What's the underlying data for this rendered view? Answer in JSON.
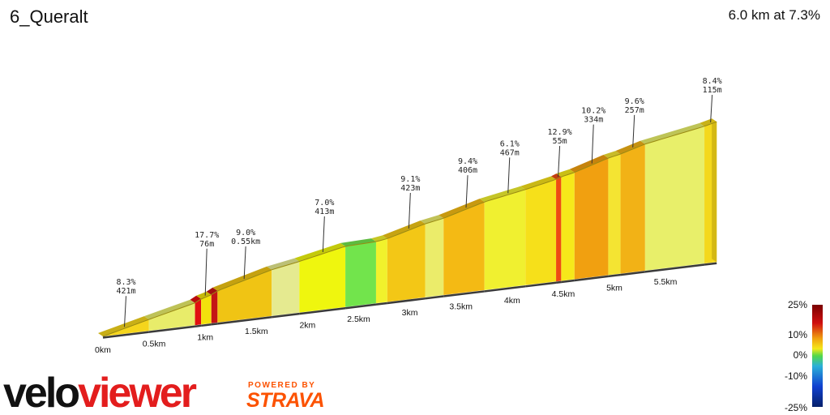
{
  "header": {
    "title": "6_Queralt",
    "summary": "6.0 km at 7.3%"
  },
  "chart_data": {
    "type": "area",
    "segments": [
      {
        "x0": 0,
        "x1": 0.45,
        "grade": 8.3,
        "color": "#f5d51c"
      },
      {
        "x0": 0.45,
        "x1": 0.9,
        "grade": 8.0,
        "color": "#e8ec6a"
      },
      {
        "x0": 0.9,
        "x1": 0.96,
        "grade": 17.7,
        "color": "#e01010"
      },
      {
        "x0": 0.96,
        "x1": 1.06,
        "grade": 9.5,
        "color": "#f2e20c"
      },
      {
        "x0": 1.06,
        "x1": 1.12,
        "grade": 17.7,
        "color": "#c41515"
      },
      {
        "x0": 1.12,
        "x1": 1.65,
        "grade": 9.0,
        "color": "#f0c414"
      },
      {
        "x0": 1.65,
        "x1": 1.92,
        "grade": 6.0,
        "color": "#e5ea90"
      },
      {
        "x0": 1.92,
        "x1": 2.37,
        "grade": 7.0,
        "color": "#eff60e"
      },
      {
        "x0": 2.37,
        "x1": 2.67,
        "grade": 1.0,
        "color": "#72e44c"
      },
      {
        "x0": 2.67,
        "x1": 2.78,
        "grade": 5.0,
        "color": "#f1f22c"
      },
      {
        "x0": 2.78,
        "x1": 3.15,
        "grade": 9.1,
        "color": "#f3c716"
      },
      {
        "x0": 3.15,
        "x1": 3.33,
        "grade": 6.0,
        "color": "#ebec6a"
      },
      {
        "x0": 3.33,
        "x1": 3.73,
        "grade": 9.4,
        "color": "#f4ba14"
      },
      {
        "x0": 3.73,
        "x1": 4.13,
        "grade": 6.1,
        "color": "#f0f030"
      },
      {
        "x0": 4.13,
        "x1": 4.43,
        "grade": 7.0,
        "color": "#f6e01a"
      },
      {
        "x0": 4.43,
        "x1": 4.48,
        "grade": 12.9,
        "color": "#ee4b12"
      },
      {
        "x0": 4.48,
        "x1": 4.61,
        "grade": 7.0,
        "color": "#f6e81a"
      },
      {
        "x0": 4.61,
        "x1": 4.94,
        "grade": 10.2,
        "color": "#f1a010"
      },
      {
        "x0": 4.94,
        "x1": 5.06,
        "grade": 7.0,
        "color": "#f4e432"
      },
      {
        "x0": 5.06,
        "x1": 5.3,
        "grade": 9.6,
        "color": "#f2b216"
      },
      {
        "x0": 5.3,
        "x1": 5.88,
        "grade": 6.0,
        "color": "#e8ef6a"
      },
      {
        "x0": 5.88,
        "x1": 6.0,
        "grade": 8.4,
        "color": "#f4d81c"
      }
    ],
    "x_ticks": [
      "0km",
      "0.5km",
      "1km",
      "1.5km",
      "2km",
      "2.5km",
      "3km",
      "3.5km",
      "4km",
      "4.5km",
      "5km",
      "5.5km"
    ],
    "annotations": [
      {
        "km": 0.21,
        "grade": "8.3%",
        "length": "421m"
      },
      {
        "km": 1.0,
        "grade": "17.7%",
        "length": "76m"
      },
      {
        "km": 1.38,
        "grade": "9.0%",
        "length": "0.55km"
      },
      {
        "km": 2.15,
        "grade": "7.0%",
        "length": "413m"
      },
      {
        "km": 2.99,
        "grade": "9.1%",
        "length": "423m"
      },
      {
        "km": 3.55,
        "grade": "9.4%",
        "length": "406m"
      },
      {
        "km": 3.96,
        "grade": "6.1%",
        "length": "467m"
      },
      {
        "km": 4.45,
        "grade": "12.9%",
        "length": "55m"
      },
      {
        "km": 4.78,
        "grade": "10.2%",
        "length": "334m"
      },
      {
        "km": 5.18,
        "grade": "9.6%",
        "length": "257m"
      },
      {
        "km": 5.94,
        "grade": "8.4%",
        "length": "115m"
      }
    ],
    "color_scale": {
      "labels": [
        "25%",
        "10%",
        "0%",
        "-10%",
        "-25%"
      ],
      "colors": [
        "#7a0000",
        "#d01010",
        "#f0a010",
        "#f5e81a",
        "#52d84a",
        "#2ab0d8",
        "#1040d0",
        "#06206a"
      ]
    }
  },
  "branding": {
    "logo_part1": "velo",
    "logo_part2": "viewer",
    "powered_by": "POWERED BY",
    "strava": "STRAVA"
  }
}
